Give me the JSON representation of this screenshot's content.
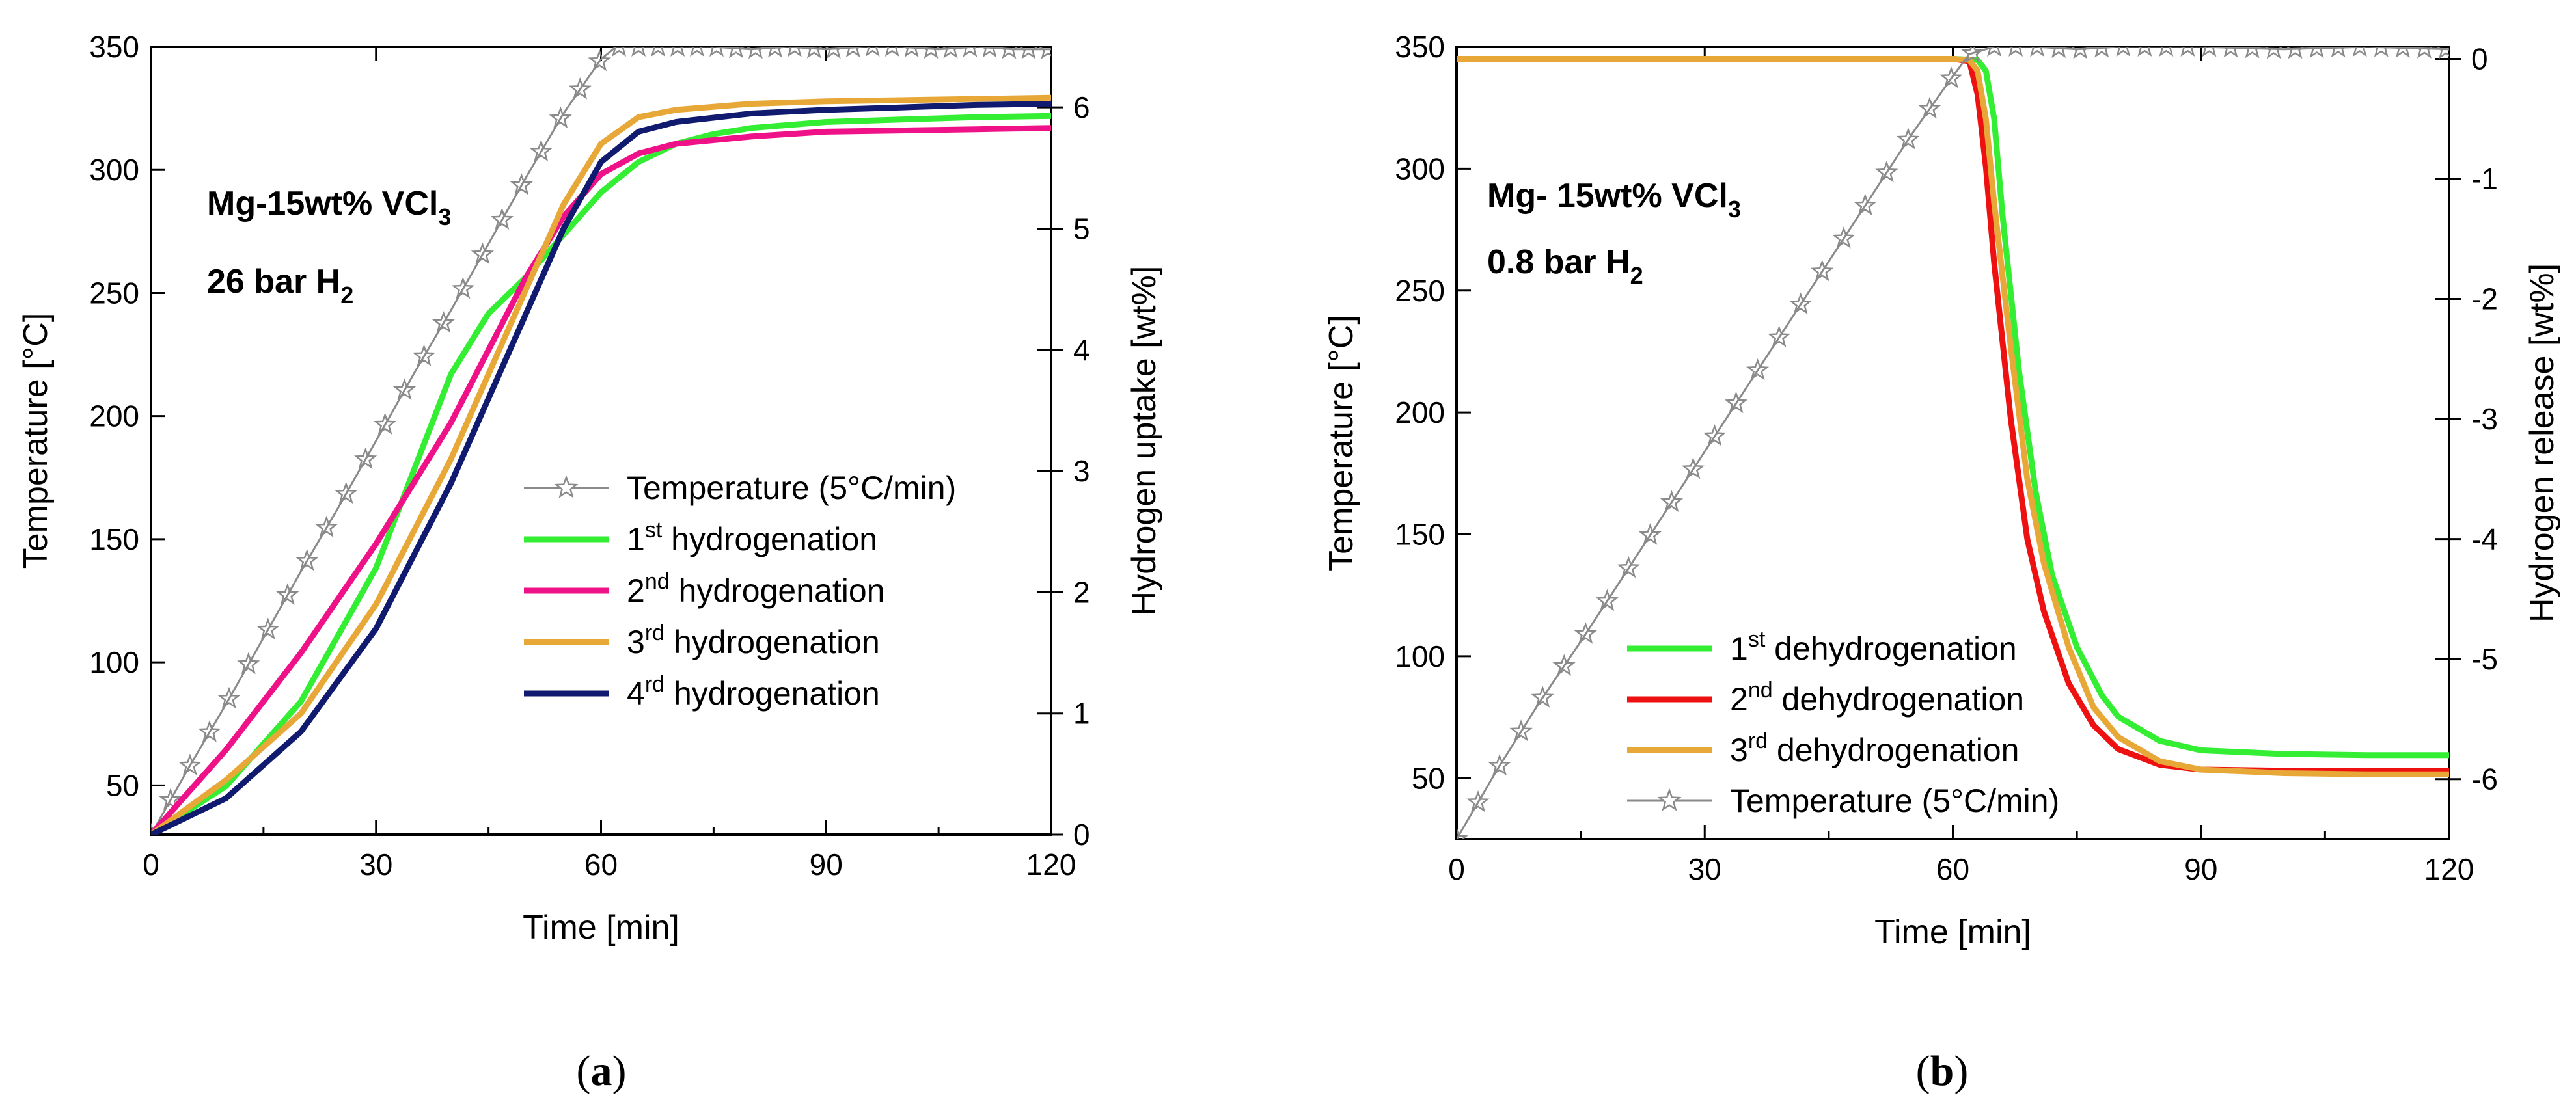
{
  "figure": {
    "panel_a_caption": {
      "open": "(",
      "letter": "a",
      "close": ")"
    },
    "panel_b_caption": {
      "open": "(",
      "letter": "b",
      "close": ")"
    }
  },
  "chart_data": [
    {
      "id": "a",
      "type": "line",
      "xlabel": "Time [min]",
      "ylabel": "Temperature [°C]",
      "y2label": "Hydrogen uptake [wt%]",
      "xlim": [
        0,
        120
      ],
      "ylim": [
        30,
        350
      ],
      "y2lim": [
        0,
        6.5
      ],
      "xticks": [
        0,
        30,
        60,
        90,
        120
      ],
      "yticks": [
        50,
        100,
        150,
        200,
        250,
        300,
        350
      ],
      "y2ticks": [
        0,
        1,
        2,
        3,
        4,
        5,
        6
      ],
      "grid": false,
      "legend_position": "center-right",
      "annotation": {
        "line1_main": "Mg-15wt% VCl",
        "line1_sub": "3",
        "line2_main": "26 bar H",
        "line2_sub": "2"
      },
      "series": [
        {
          "name": "Temperature (5°C/min)",
          "legend": {
            "main": "Temperature (5°C/min)",
            "sup": "",
            "rest": ""
          },
          "axis": "left",
          "color": "#8a8a8a",
          "marker": "star",
          "x": [
            0,
            5,
            10,
            15,
            20,
            25,
            30,
            35,
            40,
            45,
            50,
            55,
            60,
            62,
            65,
            70,
            75,
            80,
            85,
            90,
            95,
            100,
            105,
            110,
            115,
            120
          ],
          "y": [
            30,
            57,
            83,
            110,
            137,
            163,
            190,
            217,
            243,
            270,
            297,
            323,
            345,
            350,
            350,
            350,
            350,
            349,
            350,
            349,
            350,
            350,
            349,
            350,
            349,
            349
          ]
        },
        {
          "name": "1st hydrogenation",
          "legend": {
            "main": "1",
            "sup": "st",
            "rest": " hydrogenation"
          },
          "axis": "right",
          "color": "#33ee33",
          "x": [
            0,
            10,
            20,
            30,
            35,
            40,
            45,
            50,
            55,
            60,
            65,
            70,
            75,
            80,
            90,
            100,
            110,
            120
          ],
          "y": [
            0,
            0.4,
            1.1,
            2.2,
            3.0,
            3.8,
            4.3,
            4.6,
            4.95,
            5.3,
            5.55,
            5.7,
            5.78,
            5.83,
            5.88,
            5.9,
            5.92,
            5.93
          ]
        },
        {
          "name": "2nd hydrogenation",
          "legend": {
            "main": "2",
            "sup": "nd",
            "rest": " hydrogenation"
          },
          "axis": "right",
          "color": "#ee1188",
          "x": [
            0,
            10,
            20,
            30,
            40,
            50,
            55,
            60,
            65,
            70,
            80,
            90,
            100,
            110,
            120
          ],
          "y": [
            0,
            0.7,
            1.5,
            2.4,
            3.4,
            4.6,
            5.1,
            5.45,
            5.62,
            5.7,
            5.76,
            5.8,
            5.81,
            5.82,
            5.83
          ]
        },
        {
          "name": "3rd hydrogenation",
          "legend": {
            "main": "3",
            "sup": "rd",
            "rest": " hydrogenation"
          },
          "axis": "right",
          "color": "#e8a838",
          "x": [
            0,
            10,
            20,
            30,
            40,
            45,
            50,
            55,
            60,
            65,
            70,
            80,
            90,
            100,
            110,
            120
          ],
          "y": [
            0,
            0.45,
            1.0,
            1.9,
            3.1,
            3.8,
            4.5,
            5.2,
            5.7,
            5.92,
            5.98,
            6.03,
            6.05,
            6.06,
            6.07,
            6.08
          ]
        },
        {
          "name": "4rd hydrogenation",
          "legend": {
            "main": "4",
            "sup": "rd",
            "rest": " hydrogenation"
          },
          "axis": "right",
          "color": "#101a6e",
          "x": [
            0,
            10,
            20,
            30,
            40,
            45,
            50,
            55,
            60,
            65,
            70,
            80,
            90,
            100,
            110,
            120
          ],
          "y": [
            0,
            0.3,
            0.85,
            1.7,
            2.9,
            3.6,
            4.3,
            5.0,
            5.55,
            5.8,
            5.88,
            5.95,
            5.98,
            6.0,
            6.02,
            6.03
          ]
        }
      ]
    },
    {
      "id": "b",
      "type": "line",
      "xlabel": "Time [min]",
      "ylabel": "Temperature [°C]",
      "y2label": "Hydrogen release [wt%]",
      "xlim": [
        0,
        120
      ],
      "ylim": [
        25,
        350
      ],
      "y2lim": [
        -6.5,
        0.1
      ],
      "xticks": [
        0,
        30,
        60,
        90,
        120
      ],
      "yticks": [
        50,
        100,
        150,
        200,
        250,
        300,
        350
      ],
      "y2ticks": [
        0,
        -1,
        -2,
        -3,
        -4,
        -5,
        -6
      ],
      "grid": false,
      "legend_position": "bottom-left",
      "annotation": {
        "line1_main": "Mg- 15wt% VCl",
        "line1_sub": "3",
        "line2_main": "0.8 bar H",
        "line2_sub": "2"
      },
      "series": [
        {
          "name": "1st dehydrogenation",
          "legend": {
            "main": "1",
            "sup": "st",
            "rest": " dehydrogenation"
          },
          "axis": "right",
          "color": "#33ee33",
          "x": [
            0,
            30,
            60,
            63,
            64,
            65,
            66,
            68,
            70,
            72,
            75,
            78,
            80,
            85,
            90,
            100,
            110,
            120
          ],
          "y": [
            0,
            0,
            0,
            -0.01,
            -0.1,
            -0.5,
            -1.3,
            -2.6,
            -3.6,
            -4.3,
            -4.9,
            -5.3,
            -5.48,
            -5.68,
            -5.76,
            -5.79,
            -5.8,
            -5.8
          ]
        },
        {
          "name": "2nd dehydrogenation",
          "legend": {
            "main": "2",
            "sup": "nd",
            "rest": " dehydrogenation"
          },
          "axis": "right",
          "color": "#ee1111",
          "x": [
            0,
            30,
            60,
            62,
            63,
            64,
            65,
            67,
            69,
            71,
            74,
            77,
            80,
            85,
            90,
            100,
            110,
            120
          ],
          "y": [
            0,
            0,
            0,
            -0.02,
            -0.3,
            -0.9,
            -1.7,
            -3.0,
            -4.0,
            -4.6,
            -5.2,
            -5.55,
            -5.75,
            -5.88,
            -5.92,
            -5.93,
            -5.93,
            -5.93
          ]
        },
        {
          "name": "3rd dehydrogenation",
          "legend": {
            "main": "3",
            "sup": "rd",
            "rest": " dehydrogenation"
          },
          "axis": "right",
          "color": "#e8a838",
          "x": [
            0,
            30,
            60,
            62,
            63,
            64,
            65,
            67,
            69,
            71,
            74,
            77,
            80,
            85,
            90,
            100,
            110,
            120
          ],
          "y": [
            0,
            0,
            0,
            -0.01,
            -0.1,
            -0.5,
            -1.2,
            -2.4,
            -3.5,
            -4.2,
            -4.9,
            -5.4,
            -5.65,
            -5.85,
            -5.92,
            -5.95,
            -5.96,
            -5.96
          ]
        },
        {
          "name": "Temperature (5°C/min)",
          "legend": {
            "main": "Temperature (5°C/min)",
            "sup": "",
            "rest": ""
          },
          "axis": "left",
          "color": "#8a8a8a",
          "marker": "star",
          "x": [
            0,
            5,
            10,
            15,
            20,
            25,
            30,
            35,
            40,
            45,
            50,
            55,
            60,
            62,
            65,
            70,
            75,
            80,
            90,
            100,
            110,
            120
          ],
          "y": [
            25,
            54,
            81,
            106,
            132,
            158,
            184,
            210,
            236,
            262,
            288,
            314,
            338,
            347,
            350,
            350,
            349,
            350,
            350,
            349,
            350,
            349
          ]
        }
      ]
    }
  ]
}
